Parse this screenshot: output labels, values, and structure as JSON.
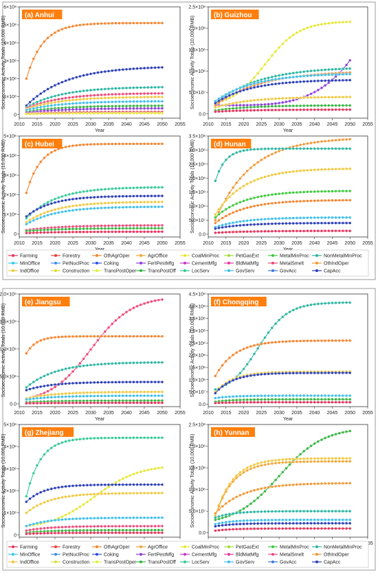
{
  "common": {
    "xlabel": "Year",
    "ylabel": "Socioeconomic Activity Totals (10,000 RMB)",
    "xticks": [
      "2010",
      "2015",
      "2020",
      "2025",
      "2030",
      "2035",
      "2040",
      "2045",
      "2050",
      "2055"
    ],
    "legend": [
      {
        "name": "Farming",
        "color": "#e8305a"
      },
      {
        "name": "Forestry",
        "color": "#f03c3c"
      },
      {
        "name": "OthAgrOper",
        "color": "#f5822a"
      },
      {
        "name": "AgrOffice",
        "color": "#f0a532"
      },
      {
        "name": "CoalMinProc",
        "color": "#e6e632"
      },
      {
        "name": "PetGasExt",
        "color": "#a0dc32"
      },
      {
        "name": "MetalMinProc",
        "color": "#3cc83c"
      },
      {
        "name": "NonMetalMinProc",
        "color": "#28b4a0"
      },
      {
        "name": "MinOffice",
        "color": "#32c8e6"
      },
      {
        "name": "PetNuclProc",
        "color": "#3c8cf0"
      },
      {
        "name": "Coking",
        "color": "#2850e6"
      },
      {
        "name": "FertPestMfg",
        "color": "#8c3cdc"
      },
      {
        "name": "CementMfg",
        "color": "#c832c8"
      },
      {
        "name": "BldMatMfg",
        "color": "#e632a0"
      },
      {
        "name": "MetalSmelt",
        "color": "#f04678"
      },
      {
        "name": "OthIndOper",
        "color": "#f09632"
      },
      {
        "name": "IndOffice",
        "color": "#f0c83c"
      },
      {
        "name": "Construction",
        "color": "#dcdc32"
      },
      {
        "name": "TransPostOper",
        "color": "#dcf03c"
      },
      {
        "name": "TransPostOff",
        "color": "#32b43c"
      },
      {
        "name": "LocServ",
        "color": "#32c896"
      },
      {
        "name": "GovServ",
        "color": "#3cbeeb"
      },
      {
        "name": "GovAcc",
        "color": "#3c78dc"
      },
      {
        "name": "CapAcc",
        "color": "#283cb4"
      }
    ]
  },
  "chart_data": [
    {
      "type": "line",
      "title": "(a) Anhui",
      "ytick_labels": [
        "0",
        "1×10⁸",
        "2×10⁸",
        "3×10⁸",
        "4×10⁸",
        "5×10⁸",
        "6×10⁸"
      ],
      "ylim": [
        -20000000,
        600000000
      ],
      "series": [
        {
          "name": "OthAgrOper",
          "color": "#f5822a",
          "start": 200000000,
          "end": 510000000,
          "k": 0.22
        },
        {
          "name": "CapAcc",
          "color": "#283cb4",
          "start": 50000000,
          "end": 270000000,
          "k": 0.09
        },
        {
          "name": "NonMetalMinProc",
          "color": "#28b4a0",
          "start": 40000000,
          "end": 155000000,
          "k": 0.1
        },
        {
          "name": "MetalSmelt",
          "color": "#f04678",
          "start": 35000000,
          "end": 120000000,
          "k": 0.1
        },
        {
          "name": "IndOffice",
          "color": "#f0c83c",
          "start": 30000000,
          "end": 100000000,
          "k": 0.1
        },
        {
          "name": "GovServ",
          "color": "#3cbeeb",
          "start": 25000000,
          "end": 75000000,
          "k": 0.1
        },
        {
          "name": "TransPostOff",
          "color": "#32b43c",
          "start": 15000000,
          "end": 50000000,
          "k": 0.1
        },
        {
          "name": "FertPestMfg",
          "color": "#8c3cdc",
          "start": 10000000,
          "end": 35000000,
          "k": 0.1
        },
        {
          "name": "Farming",
          "color": "#e8305a",
          "start": 5000000,
          "end": 15000000,
          "k": 0.1
        },
        {
          "name": "CoalMinProc",
          "color": "#e6e632",
          "start": 3000000,
          "end": 8000000,
          "k": 0.1
        }
      ]
    },
    {
      "type": "line",
      "title": "(b) Guizhou",
      "ytick_labels": [
        "0.0",
        "5.0×10⁷",
        "1.0×10⁸",
        "1.5×10⁸",
        "2.0×10⁸",
        "2.5×10⁸"
      ],
      "ylim": [
        -10000000,
        250000000
      ],
      "series": [
        {
          "name": "CoalMinProc",
          "color": "#e6e632",
          "start": 25000000,
          "end": 215000000,
          "k": 0.13,
          "mid": 2026
        },
        {
          "name": "FertPestMfg",
          "color": "#8c3cdc",
          "start": 20000000,
          "end": 125000000,
          "k": 0.0,
          "exp": true
        },
        {
          "name": "NonMetalMinProc",
          "color": "#28b4a0",
          "start": 25000000,
          "end": 110000000,
          "k": 0.08
        },
        {
          "name": "OthAgrOper",
          "color": "#f5822a",
          "start": 20000000,
          "end": 100000000,
          "k": 0.08
        },
        {
          "name": "GovServ",
          "color": "#3cbeeb",
          "start": 30000000,
          "end": 95000000,
          "k": 0.09
        },
        {
          "name": "CapAcc",
          "color": "#283cb4",
          "start": 25000000,
          "end": 80000000,
          "k": 0.1
        },
        {
          "name": "IndOffice",
          "color": "#f0c83c",
          "start": 15000000,
          "end": 40000000,
          "k": 0.1
        },
        {
          "name": "TransPostOff",
          "color": "#32b43c",
          "start": 8000000,
          "end": 20000000,
          "k": 0.1
        },
        {
          "name": "Farming",
          "color": "#e8305a",
          "start": 5000000,
          "end": 10000000,
          "k": 0.1
        }
      ]
    },
    {
      "type": "line",
      "title": "(c) Hubei",
      "ytick_labels": [
        "0",
        "1×10⁸",
        "2×10⁸",
        "3×10⁸",
        "4×10⁸",
        "5×10⁸"
      ],
      "ylim": [
        -15000000,
        500000000
      ],
      "series": [
        {
          "name": "OthAgrOper",
          "color": "#f5822a",
          "start": 210000000,
          "end": 460000000,
          "k": 0.25
        },
        {
          "name": "LocServ",
          "color": "#32c896",
          "start": 80000000,
          "end": 240000000,
          "k": 0.12
        },
        {
          "name": "CapAcc",
          "color": "#283cb4",
          "start": 90000000,
          "end": 195000000,
          "k": 0.14
        },
        {
          "name": "IndOffice",
          "color": "#f0c83c",
          "start": 60000000,
          "end": 165000000,
          "k": 0.12
        },
        {
          "name": "GovServ",
          "color": "#3cbeeb",
          "start": 50000000,
          "end": 140000000,
          "k": 0.12
        },
        {
          "name": "MetalSmelt",
          "color": "#f04678",
          "start": 20000000,
          "end": 45000000,
          "k": 0.1
        },
        {
          "name": "TransPostOff",
          "color": "#32b43c",
          "start": 15000000,
          "end": 30000000,
          "k": 0.1
        },
        {
          "name": "Farming",
          "color": "#e8305a",
          "start": 5000000,
          "end": 12000000,
          "k": 0.1
        }
      ]
    },
    {
      "type": "line",
      "title": "(d) Hunan",
      "ytick_labels": [
        "0.0",
        "5.0×10⁷",
        "1.0×10⁸",
        "1.5×10⁸",
        "2.0×10⁸",
        "2.5×10⁸",
        "3.0×10⁸",
        "3.5×10⁸"
      ],
      "ylim": [
        -10000000,
        350000000
      ],
      "series": [
        {
          "name": "OthIndOper",
          "color": "#f09632",
          "start": 50000000,
          "end": 345000000,
          "k": 0.1
        },
        {
          "name": "NonMetalMinProc",
          "color": "#28b4a0",
          "start": 190000000,
          "end": 305000000,
          "k": 0.35
        },
        {
          "name": "IndOffice",
          "color": "#f0c83c",
          "start": 70000000,
          "end": 235000000,
          "k": 0.12
        },
        {
          "name": "MetalMinProc",
          "color": "#3cc83c",
          "start": 60000000,
          "end": 155000000,
          "k": 0.12
        },
        {
          "name": "OthAgrOper",
          "color": "#f5822a",
          "start": 40000000,
          "end": 122000000,
          "k": 0.12
        },
        {
          "name": "GovServ",
          "color": "#3cbeeb",
          "start": 25000000,
          "end": 60000000,
          "k": 0.12
        },
        {
          "name": "CapAcc",
          "color": "#283cb4",
          "start": 20000000,
          "end": 40000000,
          "k": 0.12
        },
        {
          "name": "Farming",
          "color": "#e8305a",
          "start": 5000000,
          "end": 12000000,
          "k": 0.1
        }
      ]
    },
    {
      "type": "line",
      "title": "(e) Jiangsu",
      "ytick_labels": [
        "0.0",
        "5.0×10⁸",
        "1.0×10⁹",
        "1.5×10⁹",
        "2.0×10⁹"
      ],
      "ylim": [
        -50000000,
        2000000000
      ],
      "series": [
        {
          "name": "MetalSmelt",
          "color": "#f04678",
          "start": 100000000,
          "end": 1900000000,
          "k": 0.11,
          "mid": 2030
        },
        {
          "name": "OthAgrOper",
          "color": "#f5822a",
          "start": 920000000,
          "end": 1230000000,
          "k": 0.35
        },
        {
          "name": "NonMetalMinProc",
          "color": "#28b4a0",
          "start": 300000000,
          "end": 760000000,
          "k": 0.12
        },
        {
          "name": "CapAcc",
          "color": "#283cb4",
          "start": 250000000,
          "end": 400000000,
          "k": 0.14
        },
        {
          "name": "IndOffice",
          "color": "#f0c83c",
          "start": 100000000,
          "end": 220000000,
          "k": 0.12
        },
        {
          "name": "GovServ",
          "color": "#3cbeeb",
          "start": 80000000,
          "end": 150000000,
          "k": 0.12
        },
        {
          "name": "TransPostOff",
          "color": "#32b43c",
          "start": 30000000,
          "end": 60000000,
          "k": 0.12
        },
        {
          "name": "Farming",
          "color": "#e8305a",
          "start": 10000000,
          "end": 20000000,
          "k": 0.12
        }
      ]
    },
    {
      "type": "line",
      "title": "(f) Chongqing",
      "ytick_labels": [
        "0.0",
        "5.0×10⁷",
        "1.0×10⁸",
        "1.5×10⁸",
        "2.0×10⁸",
        "2.5×10⁸",
        "3.0×10⁸",
        "3.5×10⁸",
        "4.0×10⁸",
        "4.5×10⁸"
      ],
      "ylim": [
        -10000000,
        450000000
      ],
      "series": [
        {
          "name": "NonMetalMinProc",
          "color": "#28b4a0",
          "start": 60000000,
          "end": 415000000,
          "k": 0.15,
          "mid": 2024
        },
        {
          "name": "OthAgrOper",
          "color": "#f5822a",
          "start": 115000000,
          "end": 260000000,
          "k": 0.18
        },
        {
          "name": "IndOffice",
          "color": "#f0c83c",
          "start": 50000000,
          "end": 133000000,
          "k": 0.2
        },
        {
          "name": "CapAcc",
          "color": "#283cb4",
          "start": 45000000,
          "end": 128000000,
          "k": 0.2
        },
        {
          "name": "GovServ",
          "color": "#3cbeeb",
          "start": 25000000,
          "end": 35000000,
          "k": 0.2
        },
        {
          "name": "TransPostOff",
          "color": "#32b43c",
          "start": 10000000,
          "end": 20000000,
          "k": 0.2
        },
        {
          "name": "Farming",
          "color": "#e8305a",
          "start": 5000000,
          "end": 8000000,
          "k": 0.2
        }
      ]
    },
    {
      "type": "line",
      "title": "(g) Zhejiang",
      "ytick_labels": [
        "0",
        "1×10⁸",
        "2×10⁸",
        "3×10⁸",
        "4×10⁸",
        "5×10⁸"
      ],
      "ylim": [
        -10000000,
        500000000
      ],
      "series": [
        {
          "name": "LocServ",
          "color": "#32c896",
          "start": 175000000,
          "end": 440000000,
          "k": 0.25
        },
        {
          "name": "CoalMinProc",
          "color": "#e6e632",
          "start": 40000000,
          "end": 305000000,
          "k": 0.1,
          "mid": 2031
        },
        {
          "name": "CapAcc",
          "color": "#283cb4",
          "start": 150000000,
          "end": 228000000,
          "k": 0.2
        },
        {
          "name": "IndOffice",
          "color": "#f0c83c",
          "start": 100000000,
          "end": 190000000,
          "k": 0.15
        },
        {
          "name": "GovServ",
          "color": "#3cbeeb",
          "start": 40000000,
          "end": 78000000,
          "k": 0.15
        },
        {
          "name": "MetalSmelt",
          "color": "#f04678",
          "start": 20000000,
          "end": 40000000,
          "k": 0.15
        },
        {
          "name": "TransPostOff",
          "color": "#32b43c",
          "start": 10000000,
          "end": 22000000,
          "k": 0.15
        },
        {
          "name": "Farming",
          "color": "#e8305a",
          "start": 5000000,
          "end": 10000000,
          "k": 0.15
        }
      ]
    },
    {
      "type": "line",
      "title": "(h) Yunnan",
      "ytick_labels": [
        "0.0",
        "5.0×10⁷",
        "1.0×10⁸",
        "1.5×10⁸",
        "2.0×10⁸",
        "2.5×10⁸"
      ],
      "ylim": [
        -10000000,
        250000000
      ],
      "series": [
        {
          "name": "TransPostOff",
          "color": "#32b43c",
          "start": 30000000,
          "end": 235000000,
          "k": 0.1,
          "mid": 2030
        },
        {
          "name": "IndOffice",
          "color": "#f0c83c",
          "start": 40000000,
          "end": 172000000,
          "k": 0.2
        },
        {
          "name": "AgrOffice",
          "color": "#f0a532",
          "start": 38000000,
          "end": 165000000,
          "k": 0.2
        },
        {
          "name": "OthIndOper",
          "color": "#f09632",
          "start": 45000000,
          "end": 115000000,
          "k": 0.13
        },
        {
          "name": "NonMetalMinProc",
          "color": "#28b4a0",
          "start": 35000000,
          "end": 50000000,
          "k": 0.2
        },
        {
          "name": "GovServ",
          "color": "#3cbeeb",
          "start": 20000000,
          "end": 30000000,
          "k": 0.2
        },
        {
          "name": "CapAcc",
          "color": "#283cb4",
          "start": 15000000,
          "end": 22000000,
          "k": 0.2
        },
        {
          "name": "Farming",
          "color": "#e8305a",
          "start": 5000000,
          "end": 10000000,
          "k": 0.2
        }
      ]
    }
  ]
}
